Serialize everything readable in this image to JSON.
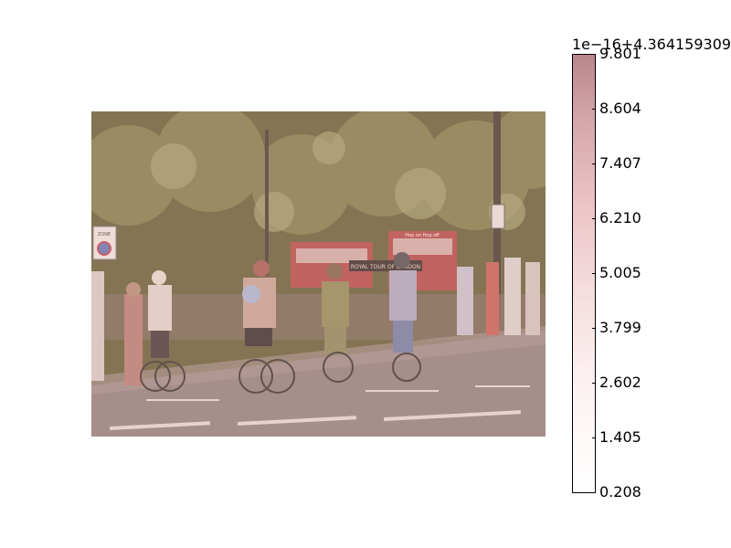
{
  "colorbar": {
    "offset_text": "1e−16+4.364159309",
    "ticks": [
      "9.801",
      "8.604",
      "7.407",
      "6.210",
      "5.005",
      "3.799",
      "2.602",
      "1.405",
      "0.208"
    ],
    "colors": [
      "#b9868d",
      "#cfa4a8",
      "#dfbcc0",
      "#ecd1d4",
      "#f5e2e4",
      "#faeeee",
      "#fdf6f6",
      "#ffffff"
    ]
  },
  "photo": {
    "bus_sign_text": "Hop on Hop off",
    "bus_banner_text": "ROYAL TOUR OF LONDON",
    "street_sign_text": "ZONE"
  }
}
